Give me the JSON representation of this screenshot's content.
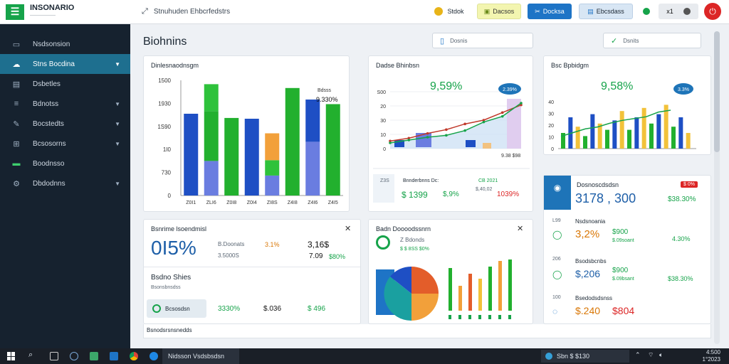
{
  "app": {
    "name": "INSONARIO",
    "subtitle": "——————"
  },
  "sidebar": {
    "items": [
      {
        "label": "Nsdsonsion",
        "icon": "monitor-icon"
      },
      {
        "label": "Stns Bocdina",
        "icon": "cloud-icon",
        "active": true
      },
      {
        "label": "Dsbetles",
        "icon": "folder-icon"
      },
      {
        "label": "Bdnotss",
        "icon": "list-icon"
      },
      {
        "label": "Bocstedts",
        "icon": "pencil-icon"
      },
      {
        "label": "Bcsosorns",
        "icon": "grid-icon"
      },
      {
        "label": "Boodnsso",
        "icon": "table-icon"
      },
      {
        "label": "Dbdodnns",
        "icon": "gear-icon"
      }
    ]
  },
  "topbar": {
    "breadcrumb": "Stnuhuden Ehbcrfedstrs",
    "search_label": "Stdok",
    "btn1": "Dacsos",
    "btn2": "Docksa",
    "btn3": "Ebcsdass",
    "counter": "x1"
  },
  "main": {
    "title": "Biohnins",
    "tag1": "Dosnis",
    "tag2": "Dsnits"
  },
  "card_bar": {
    "title": "Dinlesnaodnsgm",
    "annotation_label": "Bdsss",
    "annotation_value": "9.330%"
  },
  "card_line": {
    "title": "Dadse Bhinbsn",
    "big": "9,59%",
    "bubble": "2.39%",
    "end_label": "9.38 $98",
    "footer_small": "Z3S",
    "footer_label1": "Bnnderbnns Dc:",
    "footer_label2": "CB 2021",
    "footer_v1": "$ 1399",
    "footer_v2": "$,9%",
    "footer_v3": "$,40,02",
    "footer_v4": "1039%"
  },
  "card_right": {
    "title": "Bsc Bpbidgm",
    "big": "9,58%",
    "bubble": "3.3%"
  },
  "card_summary": {
    "title": "Bsnrime lsoendmisl",
    "big": "0I5%",
    "r1_label": "B.Doonats",
    "r1_v1": "3.1%",
    "r1_v2": "3,16$",
    "r2_label": "3.5000S",
    "r2_v1": "7.09",
    "r2_v2": "$80%",
    "sub_title": "Bsdno Shies",
    "sub_caption": "Bsonsbnsdss",
    "chip": "Bcsosdsn",
    "f1": "3330%",
    "f2": "$.036",
    "f3": "$ 496"
  },
  "card_combo": {
    "title": "Badn Doooodssnrn",
    "legend1": "Z Bdonds",
    "legend2": "$ $ 8SS $0%"
  },
  "card_list": {
    "title": "Dosnoscdsdsn",
    "badge": "$ 0%",
    "top_value": "3178 , 300",
    "top_pct": "$38.30%",
    "rows": [
      {
        "num": "L99",
        "label": "Nsdsnoania",
        "v1": "3,2%",
        "v2": "$900",
        "v3": "$.09soant",
        "v4": "4.30%"
      },
      {
        "num": "206",
        "label": "Bsodsbcnbs",
        "v1": "$,206",
        "v2": "$900",
        "v3": "$.09bsant",
        "v4": "$38.30%"
      },
      {
        "num": "100",
        "label": "Bsedodsdsnss",
        "v1": "$.240",
        "v2": "$804",
        "v3": "",
        "v4": ""
      }
    ]
  },
  "footer_label": "Bsnodsrsnsnedds",
  "taskbar": {
    "app_label": "Nidsson Vsdsbsdsn",
    "tray": "Sbn $ $130",
    "time": "4:500",
    "date": "1°2023"
  },
  "chart_data": [
    {
      "type": "bar",
      "title": "Dinlesnaodnsgm",
      "categories": [
        "Z0I1",
        "ZLI6",
        "Z0I8",
        "Z0I4",
        "ZI8S",
        "Z4I8",
        "Z4I6",
        "Z4I5"
      ],
      "series": [
        {
          "values": [
            1065,
            0,
            0,
            1000,
            0,
            0,
            550,
            0
          ]
        },
        {
          "values": [
            0,
            450,
            0,
            0,
            260,
            0,
            700,
            0
          ]
        },
        {
          "values": [
            0,
            650,
            1010,
            0,
            0,
            1400,
            0,
            1190
          ]
        },
        {
          "values": [
            0,
            350,
            0,
            0,
            200,
            0,
            0,
            0
          ]
        },
        {
          "values": [
            0,
            0,
            0,
            0,
            350,
            0,
            0,
            0
          ]
        }
      ],
      "yticks": [
        "0",
        "730",
        "1I0",
        "1S90",
        "1930",
        "1500"
      ],
      "ylim": [
        0,
        1500
      ]
    },
    {
      "type": "line",
      "title": "Dadse Bhinbsn",
      "x": [
        0,
        1,
        2,
        3,
        4,
        5,
        6,
        7
      ],
      "series": [
        {
          "values": [
            40,
            55,
            80,
            100,
            130,
            150,
            190,
            230
          ]
        },
        {
          "values": [
            30,
            45,
            60,
            70,
            95,
            140,
            170,
            240
          ]
        }
      ],
      "yticks": [
        "0",
        "10",
        "30",
        "20",
        "S00"
      ],
      "ylim": [
        0,
        300
      ]
    },
    {
      "type": "bar",
      "title": "Bsc Bpbidgm",
      "series": [
        {
          "values": [
            10,
            20,
            14,
            8,
            22,
            16,
            12,
            18,
            24,
            12,
            20,
            26,
            16,
            22,
            28,
            14,
            20,
            10
          ]
        }
      ],
      "line": [
        20,
        40,
        60,
        70,
        90,
        105,
        115,
        125,
        150,
        160
      ],
      "yticks": [
        "0",
        "10",
        "20",
        "30",
        "40"
      ]
    },
    {
      "type": "bar",
      "title": "Badn Doooodssnrn",
      "values": [
        60,
        35,
        52,
        45,
        62,
        70,
        72
      ],
      "yticks": []
    }
  ]
}
